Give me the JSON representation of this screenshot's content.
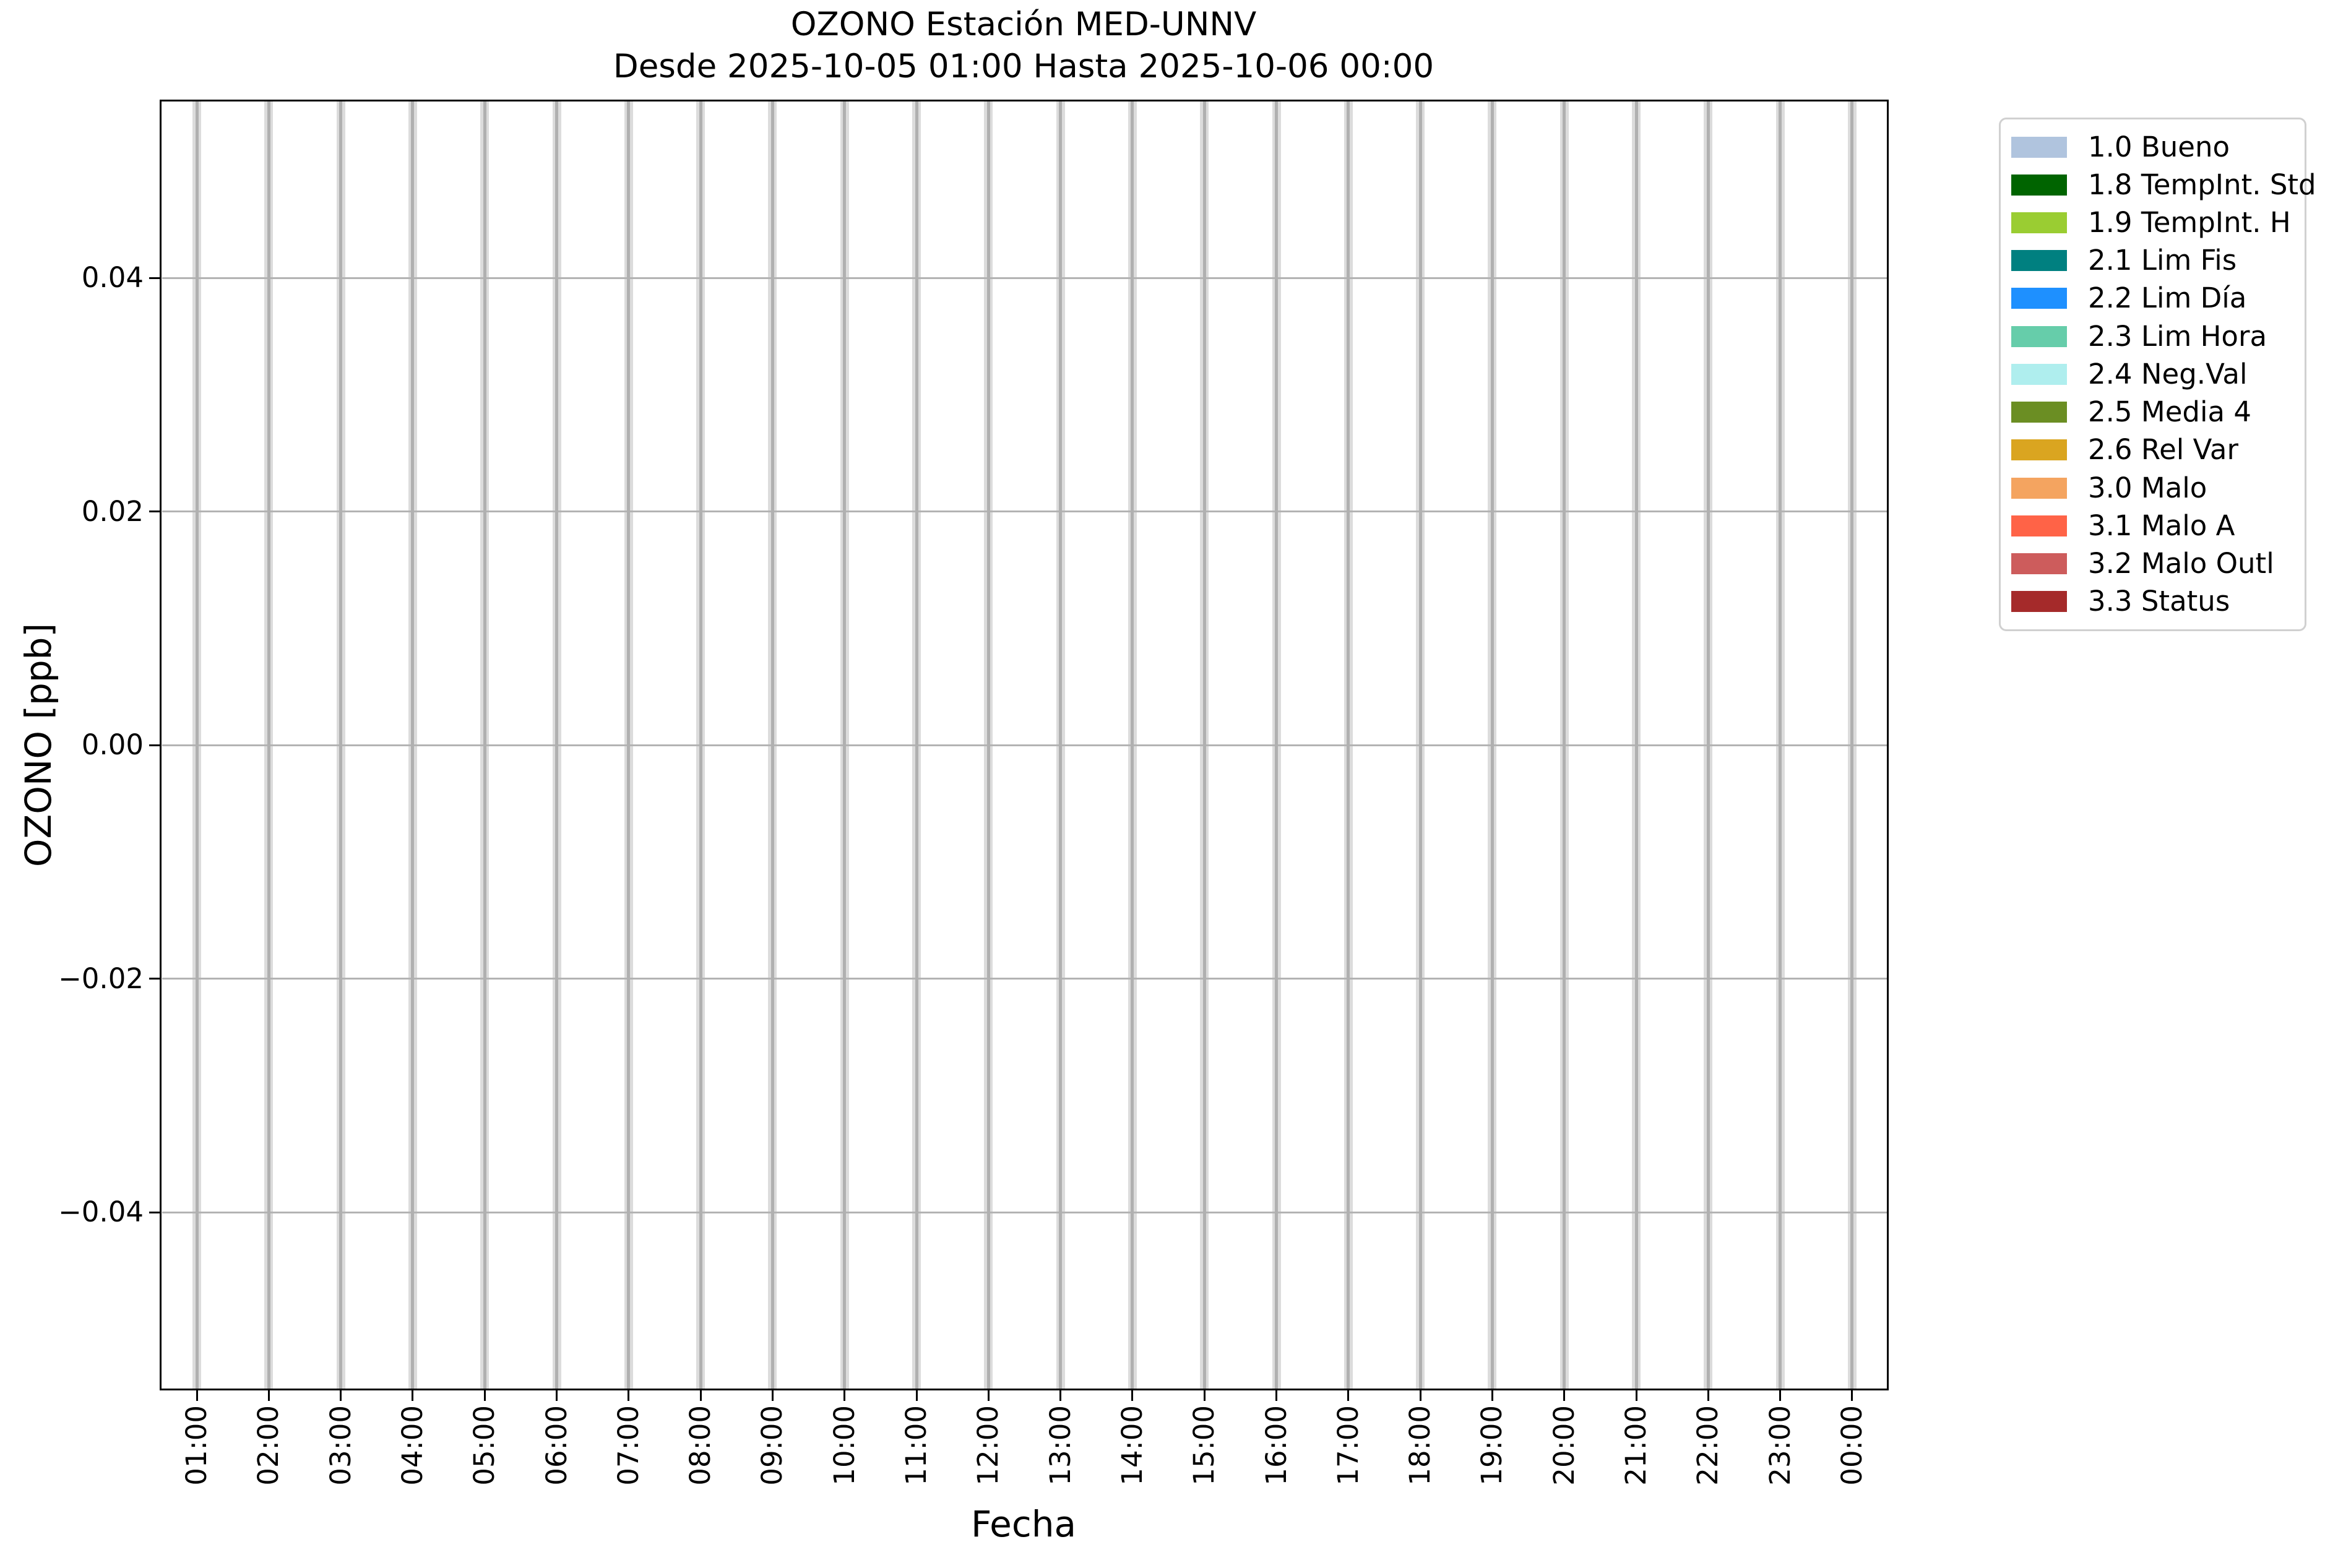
{
  "figure": {
    "title": "OZONO Estación MED-UNNV",
    "subtitle": "Desde 2025-10-05 01:00 Hasta 2025-10-06 00:00",
    "xlabel": "Fecha",
    "ylabel": "OZONO [ppb]"
  },
  "axes": {
    "y_tick_labels": [
      "0.04",
      "0.02",
      "0.00",
      "−0.02",
      "−0.04"
    ],
    "x_tick_labels": [
      "01:00",
      "02:00",
      "03:00",
      "04:00",
      "05:00",
      "06:00",
      "07:00",
      "08:00",
      "09:00",
      "10:00",
      "11:00",
      "12:00",
      "13:00",
      "14:00",
      "15:00",
      "16:00",
      "17:00",
      "18:00",
      "19:00",
      "20:00",
      "21:00",
      "22:00",
      "23:00",
      "00:00"
    ]
  },
  "legend": {
    "items": [
      {
        "label": "1.0 Bueno",
        "color": "#b0c4de"
      },
      {
        "label": "1.8 TempInt. Std",
        "color": "#006400"
      },
      {
        "label": "1.9 TempInt. H",
        "color": "#9acd32"
      },
      {
        "label": "2.1 Lim Fis",
        "color": "#008080"
      },
      {
        "label": "2.2 Lim Día",
        "color": "#1e90ff"
      },
      {
        "label": "2.3 Lim Hora",
        "color": "#66cdaa"
      },
      {
        "label": "2.4 Neg.Val",
        "color": "#afeeee"
      },
      {
        "label": "2.5 Media 4",
        "color": "#6b8e23"
      },
      {
        "label": "2.6 Rel Var",
        "color": "#daa520"
      },
      {
        "label": "3.0 Malo",
        "color": "#f4a460"
      },
      {
        "label": "3.1 Malo A",
        "color": "#ff6347"
      },
      {
        "label": "3.2 Malo Outl",
        "color": "#cd5c5c"
      },
      {
        "label": "3.3 Status",
        "color": "#a52a2a"
      }
    ]
  },
  "chart_data": {
    "type": "bar",
    "title": "OZONO Estación MED-UNNV",
    "subtitle": "Desde 2025-10-05 01:00 Hasta 2025-10-06 00:00",
    "xlabel": "Fecha",
    "ylabel": "OZONO [ppb]",
    "categories": [
      "01:00",
      "02:00",
      "03:00",
      "04:00",
      "05:00",
      "06:00",
      "07:00",
      "08:00",
      "09:00",
      "10:00",
      "11:00",
      "12:00",
      "13:00",
      "14:00",
      "15:00",
      "16:00",
      "17:00",
      "18:00",
      "19:00",
      "20:00",
      "21:00",
      "22:00",
      "23:00",
      "00:00"
    ],
    "series": [
      {
        "name": "1.0 Bueno",
        "color": "#b0c4de",
        "values": []
      },
      {
        "name": "1.8 TempInt. Std",
        "color": "#006400",
        "values": []
      },
      {
        "name": "1.9 TempInt. H",
        "color": "#9acd32",
        "values": []
      },
      {
        "name": "2.1 Lim Fis",
        "color": "#008080",
        "values": []
      },
      {
        "name": "2.2 Lim Día",
        "color": "#1e90ff",
        "values": []
      },
      {
        "name": "2.3 Lim Hora",
        "color": "#66cdaa",
        "values": []
      },
      {
        "name": "2.4 Neg.Val",
        "color": "#afeeee",
        "values": []
      },
      {
        "name": "2.5 Media 4",
        "color": "#6b8e23",
        "values": []
      },
      {
        "name": "2.6 Rel Var",
        "color": "#daa520",
        "values": []
      },
      {
        "name": "3.0 Malo",
        "color": "#f4a460",
        "values": []
      },
      {
        "name": "3.1 Malo A",
        "color": "#ff6347",
        "values": []
      },
      {
        "name": "3.2 Malo Outl",
        "color": "#cd5c5c",
        "values": []
      },
      {
        "name": "3.3 Status",
        "color": "#a52a2a",
        "values": []
      }
    ],
    "note": "Plot area is empty: no non-zero data values are rendered for any series in the visible time window; only hourly gridline bands are visible.",
    "yticks": [
      0.04,
      0.02,
      0.0,
      -0.02,
      -0.04
    ],
    "ylim": [
      -0.055,
      0.055
    ],
    "grid": "vertical band + gridline per hour, horizontal gridline per y-tick",
    "legend_position": "outside right, top"
  }
}
